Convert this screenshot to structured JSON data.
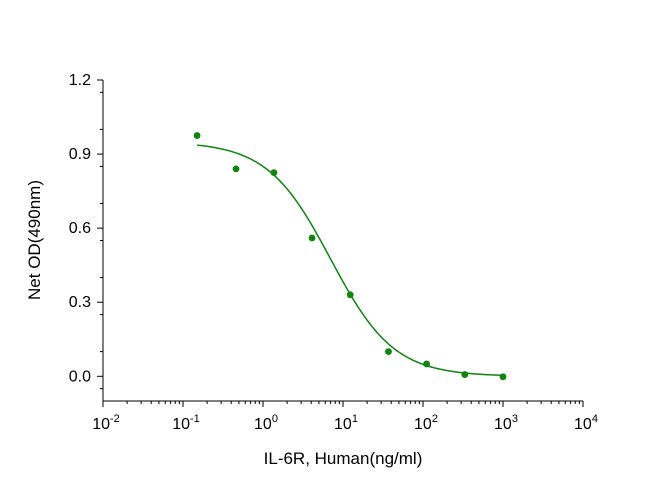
{
  "chart_data": {
    "type": "scatter",
    "title": "",
    "xlabel": "IL-6R, Human(ng/ml)",
    "ylabel": "Net OD(490nm)",
    "x_scale": "log10",
    "xlim": [
      0.01,
      10000
    ],
    "ylim": [
      -0.1,
      1.2
    ],
    "x_ticks": [
      {
        "base": "10",
        "exp": "-2"
      },
      {
        "base": "10",
        "exp": "-1"
      },
      {
        "base": "10",
        "exp": "0"
      },
      {
        "base": "10",
        "exp": "1"
      },
      {
        "base": "10",
        "exp": "2"
      },
      {
        "base": "10",
        "exp": "3"
      },
      {
        "base": "10",
        "exp": "4"
      }
    ],
    "y_ticks": [
      "0.0",
      "0.3",
      "0.6",
      "0.9",
      "1.2"
    ],
    "grid": false,
    "legend": false,
    "color": "#0f840f",
    "series": [
      {
        "points": [
          {
            "x": 0.15,
            "y": 0.975
          },
          {
            "x": 0.46,
            "y": 0.84
          },
          {
            "x": 1.37,
            "y": 0.825
          },
          {
            "x": 4.1,
            "y": 0.56
          },
          {
            "x": 12.3,
            "y": 0.33
          },
          {
            "x": 37,
            "y": 0.1
          },
          {
            "x": 111,
            "y": 0.05
          },
          {
            "x": 333,
            "y": 0.007
          },
          {
            "x": 1000,
            "y": -0.002
          }
        ],
        "fit": {
          "model": "4PL",
          "top": 0.95,
          "bottom": 0.0,
          "ec50": 7.0,
          "hill": 1.1,
          "x_range": [
            0.15,
            1000
          ]
        }
      }
    ]
  }
}
